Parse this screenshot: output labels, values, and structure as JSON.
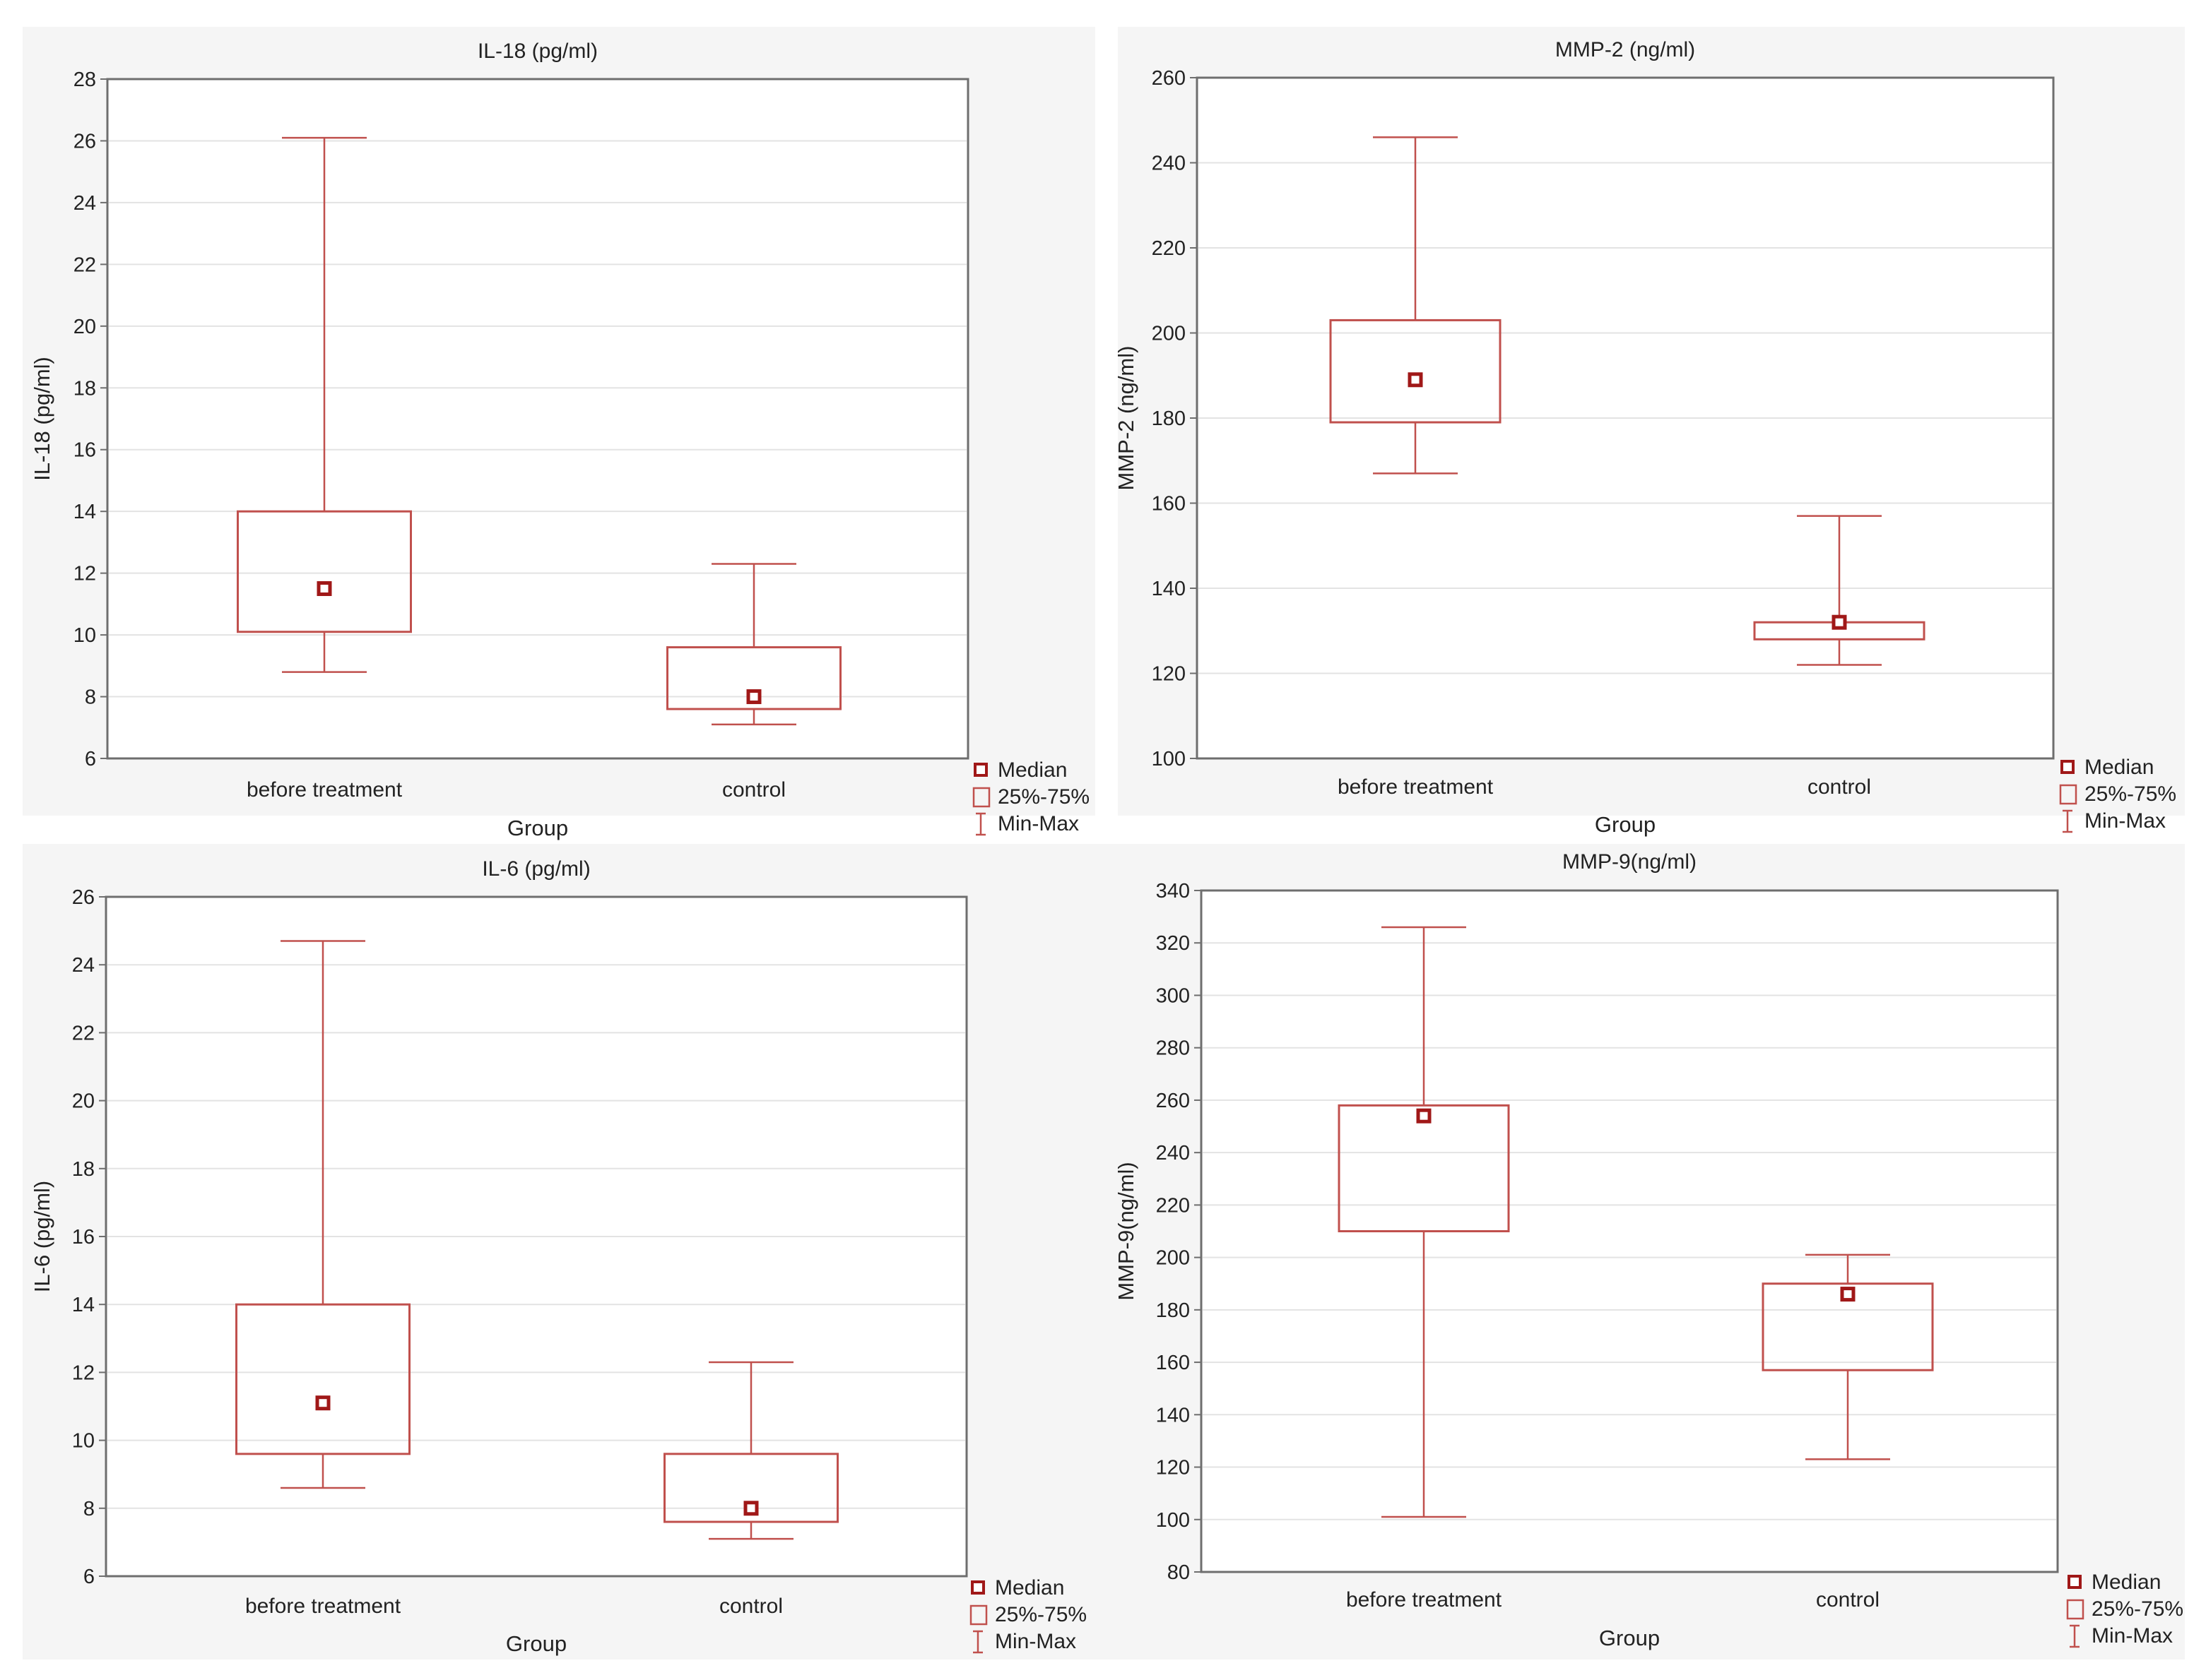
{
  "colors": {
    "series": "#c0504d",
    "median": "#a01818"
  },
  "legend": {
    "median": "Median",
    "iqr": "25%-75%",
    "range": "Min-Max"
  },
  "chart_data": [
    {
      "type": "box",
      "title": "IL-18 (pg/ml)",
      "ylabel": "IL-18 (pg/ml)",
      "xlabel": "Group",
      "ylim": [
        6,
        28
      ],
      "yticks": [
        6,
        8,
        10,
        12,
        14,
        16,
        18,
        20,
        22,
        24,
        26,
        28
      ],
      "categories": [
        "before treatment",
        "control"
      ],
      "median": [
        11.5,
        8.0
      ],
      "q1": [
        10.1,
        7.6
      ],
      "q3": [
        14.0,
        9.6
      ],
      "min": [
        8.8,
        7.1
      ],
      "max": [
        26.1,
        12.3
      ],
      "grid": true,
      "legend_position": "bottom-right outside"
    },
    {
      "type": "box",
      "title": "MMP-2  (ng/ml)",
      "ylabel": "MMP-2  (ng/ml)",
      "xlabel": "Group",
      "ylim": [
        100,
        260
      ],
      "yticks": [
        100,
        120,
        140,
        160,
        180,
        200,
        220,
        240,
        260
      ],
      "categories": [
        "before treatment",
        "control"
      ],
      "median": [
        189,
        132
      ],
      "q1": [
        179,
        128
      ],
      "q3": [
        203,
        132
      ],
      "min": [
        167,
        122
      ],
      "max": [
        246,
        157
      ],
      "grid": true,
      "legend_position": "bottom-right outside"
    },
    {
      "type": "box",
      "title": "IL-6 (pg/ml)",
      "ylabel": "IL-6 (pg/ml)",
      "xlabel": "Group",
      "ylim": [
        6,
        26
      ],
      "yticks": [
        6,
        8,
        10,
        12,
        14,
        16,
        18,
        20,
        22,
        24,
        26
      ],
      "categories": [
        "before treatment",
        "control"
      ],
      "median": [
        11.1,
        8.0
      ],
      "q1": [
        9.6,
        7.6
      ],
      "q3": [
        14.0,
        9.6
      ],
      "min": [
        8.6,
        7.1
      ],
      "max": [
        24.7,
        12.3
      ],
      "grid": true,
      "legend_position": "bottom-right outside"
    },
    {
      "type": "box",
      "title": "MMP-9(ng/ml)",
      "ylabel": "MMP-9(ng/ml)",
      "xlabel": "Group",
      "ylim": [
        80,
        340
      ],
      "yticks": [
        80,
        100,
        120,
        140,
        160,
        180,
        200,
        220,
        240,
        260,
        280,
        300,
        320,
        340
      ],
      "categories": [
        "before treatment",
        "control"
      ],
      "median": [
        254,
        186
      ],
      "q1": [
        210,
        157
      ],
      "q3": [
        258,
        190
      ],
      "min": [
        101,
        123
      ],
      "max": [
        326,
        201
      ],
      "grid": true,
      "legend_position": "bottom-right outside"
    }
  ]
}
